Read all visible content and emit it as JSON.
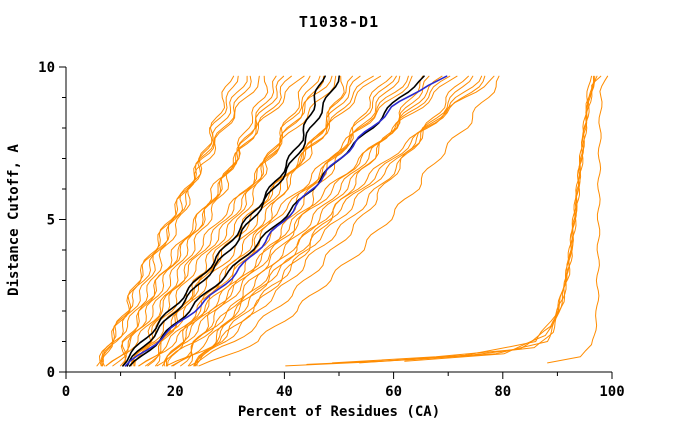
{
  "chart_data": {
    "type": "line",
    "title": "T1038-D1",
    "xlabel": "Percent of Residues (CA)",
    "ylabel": "Distance Cutoff, A",
    "xlim": [
      0,
      100
    ],
    "ylim": [
      0,
      10
    ],
    "xticks": [
      0,
      20,
      40,
      60,
      80,
      100
    ],
    "xtick_labels": [
      "0",
      "20",
      "40",
      "60",
      "80",
      "100"
    ],
    "yticks": [
      0,
      5,
      10
    ],
    "ytick_labels": [
      "0",
      "5",
      "10"
    ],
    "grid": false,
    "legend": "none",
    "colors": {
      "models": "#ff8c00",
      "highlight_black": "#000000",
      "highlight_blue": "#2a2ad0"
    },
    "y_levels": [
      0.2,
      1,
      2,
      3,
      4,
      5,
      6,
      7,
      8,
      9,
      9.7
    ],
    "orange_bundle": [
      [
        5,
        9,
        13,
        16,
        18,
        21,
        23,
        25,
        27,
        29,
        30
      ],
      [
        6,
        9,
        12,
        15,
        17,
        20,
        23,
        25,
        27,
        30,
        31
      ],
      [
        6,
        8,
        11,
        14,
        17,
        20,
        22,
        25,
        28,
        31,
        33
      ],
      [
        7,
        8,
        11,
        13,
        16,
        19,
        22,
        25,
        29,
        32,
        34
      ],
      [
        7,
        8,
        11,
        13,
        16,
        19,
        22,
        26,
        29,
        33,
        36
      ],
      [
        8,
        13,
        17,
        20,
        23,
        26,
        29,
        31,
        33,
        36,
        37
      ],
      [
        8,
        12,
        16,
        19,
        22,
        25,
        28,
        31,
        34,
        37,
        39
      ],
      [
        9,
        12,
        15,
        18,
        21,
        25,
        28,
        31,
        34,
        38,
        40
      ],
      [
        10,
        11,
        14,
        17,
        21,
        24,
        28,
        31,
        35,
        39,
        41
      ],
      [
        10,
        11,
        14,
        17,
        20,
        24,
        27,
        31,
        35,
        40,
        43
      ],
      [
        11,
        17,
        21,
        25,
        28,
        32,
        35,
        37,
        40,
        43,
        44
      ],
      [
        11,
        16,
        20,
        24,
        27,
        31,
        34,
        37,
        40,
        44,
        46
      ],
      [
        12,
        15,
        19,
        22,
        26,
        30,
        34,
        37,
        41,
        45,
        47
      ],
      [
        12,
        15,
        18,
        21,
        25,
        29,
        33,
        37,
        41,
        45,
        49
      ],
      [
        13,
        15,
        17,
        21,
        24,
        28,
        33,
        37,
        42,
        47,
        50
      ],
      [
        14,
        20,
        25,
        30,
        34,
        37,
        40,
        44,
        47,
        50,
        51
      ],
      [
        14,
        19,
        24,
        28,
        32,
        36,
        40,
        43,
        47,
        50,
        53
      ],
      [
        15,
        18,
        22,
        26,
        31,
        35,
        39,
        43,
        47,
        51,
        54
      ],
      [
        15,
        18,
        21,
        25,
        29,
        34,
        38,
        43,
        48,
        52,
        56
      ],
      [
        16,
        18,
        21,
        24,
        29,
        33,
        38,
        43,
        48,
        53,
        57
      ],
      [
        16,
        24,
        30,
        34,
        39,
        43,
        46,
        50,
        53,
        56,
        59
      ],
      [
        17,
        22,
        27,
        32,
        37,
        41,
        45,
        49,
        53,
        57,
        60
      ],
      [
        18,
        21,
        26,
        31,
        35,
        40,
        44,
        49,
        54,
        58,
        61
      ],
      [
        18,
        21,
        25,
        29,
        34,
        38,
        44,
        49,
        54,
        59,
        63
      ],
      [
        19,
        21,
        24,
        28,
        33,
        37,
        43,
        48,
        54,
        60,
        64
      ],
      [
        19,
        28,
        34,
        39,
        44,
        48,
        52,
        56,
        60,
        63,
        66
      ],
      [
        20,
        26,
        31,
        37,
        42,
        46,
        51,
        56,
        60,
        64,
        67
      ],
      [
        20,
        24,
        30,
        35,
        40,
        45,
        50,
        55,
        60,
        65,
        69
      ],
      [
        21,
        24,
        28,
        33,
        38,
        43,
        49,
        54,
        60,
        66,
        70
      ],
      [
        22,
        24,
        27,
        32,
        37,
        42,
        48,
        54,
        60,
        67,
        71
      ],
      [
        22,
        31,
        38,
        44,
        49,
        54,
        58,
        62,
        66,
        70,
        73
      ],
      [
        23,
        29,
        35,
        41,
        46,
        52,
        57,
        62,
        66,
        71,
        74
      ],
      [
        23,
        28,
        33,
        39,
        44,
        50,
        55,
        61,
        66,
        72,
        76
      ],
      [
        24,
        27,
        32,
        37,
        43,
        48,
        54,
        60,
        66,
        73,
        77
      ],
      [
        24,
        27,
        31,
        36,
        41,
        47,
        53,
        59,
        66,
        73,
        79
      ],
      [
        25,
        35,
        42,
        48,
        54,
        59,
        64,
        68,
        73,
        77,
        80
      ]
    ],
    "orange_outliers": [
      [
        [
          40,
          0.2
        ],
        [
          58,
          0.35
        ],
        [
          74,
          0.55
        ],
        [
          86,
          0.8
        ],
        [
          89,
          1.3
        ],
        [
          91,
          2.3
        ],
        [
          92,
          3.6
        ],
        [
          93,
          5.0
        ],
        [
          94,
          6.6
        ],
        [
          95,
          8.2
        ],
        [
          96,
          9.7
        ]
      ],
      [
        [
          44,
          0.25
        ],
        [
          63,
          0.4
        ],
        [
          79,
          0.6
        ],
        [
          88,
          1.0
        ],
        [
          90,
          1.8
        ],
        [
          92,
          3.2
        ],
        [
          93,
          4.8
        ],
        [
          94,
          6.4
        ],
        [
          95,
          7.9
        ],
        [
          96,
          9.0
        ],
        [
          96.5,
          9.7
        ]
      ],
      [
        [
          49,
          0.3
        ],
        [
          68,
          0.5
        ],
        [
          83,
          0.75
        ],
        [
          89,
          1.5
        ],
        [
          91,
          2.6
        ],
        [
          92.5,
          4.0
        ],
        [
          93.5,
          5.6
        ],
        [
          94.5,
          7.2
        ],
        [
          95.5,
          8.8
        ],
        [
          97,
          9.7
        ]
      ],
      [
        [
          54,
          0.3
        ],
        [
          73,
          0.55
        ],
        [
          86,
          1.0
        ],
        [
          90,
          2.0
        ],
        [
          92,
          3.5
        ],
        [
          93,
          5.0
        ],
        [
          94,
          6.6
        ],
        [
          95,
          8.0
        ],
        [
          96,
          9.2
        ],
        [
          97.5,
          9.7
        ]
      ],
      [
        [
          62,
          0.35
        ],
        [
          80,
          0.6
        ],
        [
          88,
          1.2
        ],
        [
          91,
          2.4
        ],
        [
          92.5,
          3.8
        ],
        [
          93.5,
          5.3
        ],
        [
          94.5,
          7.0
        ],
        [
          95.5,
          8.5
        ],
        [
          96.5,
          9.4
        ],
        [
          98,
          9.7
        ]
      ],
      [
        [
          88,
          0.3
        ],
        [
          94,
          0.5
        ],
        [
          96.5,
          0.9
        ],
        [
          97.3,
          2.0
        ],
        [
          97.5,
          4.0
        ],
        [
          97.6,
          6.0
        ],
        [
          97.8,
          8.0
        ],
        [
          98,
          9.2
        ],
        [
          99,
          9.7
        ]
      ]
    ],
    "black_series": [
      [
        [
          10,
          0.2
        ],
        [
          13,
          0.8
        ],
        [
          17,
          1.6
        ],
        [
          22,
          2.6
        ],
        [
          27,
          3.6
        ],
        [
          31,
          4.5
        ],
        [
          35,
          5.4
        ],
        [
          39,
          6.4
        ],
        [
          43,
          7.6
        ],
        [
          45,
          8.6
        ],
        [
          47,
          9.7
        ]
      ],
      [
        [
          11,
          0.2
        ],
        [
          15,
          1.0
        ],
        [
          20,
          2.0
        ],
        [
          25,
          3.0
        ],
        [
          30,
          4.0
        ],
        [
          34,
          5.0
        ],
        [
          38,
          6.0
        ],
        [
          42,
          7.0
        ],
        [
          45,
          8.0
        ],
        [
          48,
          9.0
        ],
        [
          50,
          9.7
        ]
      ],
      [
        [
          12,
          0.2
        ],
        [
          18,
          1.2
        ],
        [
          24,
          2.3
        ],
        [
          30,
          3.3
        ],
        [
          35,
          4.2
        ],
        [
          40,
          5.1
        ],
        [
          45,
          6.0
        ],
        [
          50,
          7.0
        ],
        [
          56,
          8.0
        ],
        [
          61,
          9.0
        ],
        [
          66,
          9.7
        ]
      ]
    ],
    "blue_series": [
      [
        [
          11,
          0.2
        ],
        [
          16,
          0.9
        ],
        [
          22,
          1.8
        ],
        [
          28,
          2.7
        ],
        [
          33,
          3.6
        ],
        [
          38,
          4.6
        ],
        [
          43,
          5.6
        ],
        [
          48,
          6.6
        ],
        [
          54,
          7.7
        ],
        [
          60,
          8.7
        ],
        [
          66,
          9.4
        ],
        [
          70,
          9.7
        ]
      ]
    ]
  }
}
